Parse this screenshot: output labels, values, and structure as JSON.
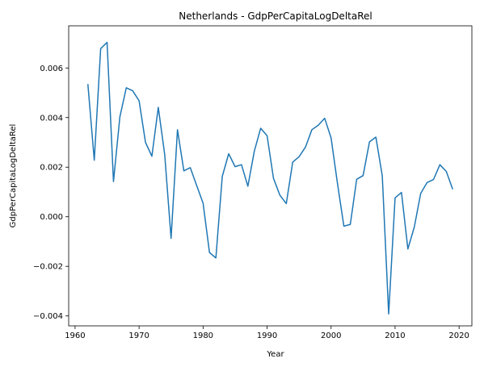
{
  "chart_data": {
    "type": "line",
    "title": "Netherlands - GdpPerCapitaLogDeltaRel",
    "xlabel": "Year",
    "ylabel": "GdpPerCapitaLogDeltaRel",
    "xlim": [
      1959,
      2022
    ],
    "ylim": [
      -0.0044,
      0.0077
    ],
    "x_ticks": [
      1960,
      1970,
      1980,
      1990,
      2000,
      2010,
      2020
    ],
    "x_tick_labels": [
      "1960",
      "1970",
      "1980",
      "1990",
      "2000",
      "2010",
      "2020"
    ],
    "y_ticks": [
      -0.004,
      -0.002,
      0.0,
      0.002,
      0.004,
      0.006
    ],
    "y_tick_labels": [
      "−0.004",
      "−0.002",
      "0.000",
      "0.002",
      "0.004",
      "0.006"
    ],
    "grid": false,
    "line_color": "#1f77b4",
    "x": [
      1962,
      1963,
      1964,
      1965,
      1966,
      1967,
      1968,
      1969,
      1970,
      1971,
      1972,
      1973,
      1974,
      1975,
      1976,
      1977,
      1978,
      1979,
      1980,
      1981,
      1982,
      1983,
      1984,
      1985,
      1986,
      1987,
      1988,
      1989,
      1990,
      1991,
      1992,
      1993,
      1994,
      1995,
      1996,
      1997,
      1998,
      1999,
      2000,
      2001,
      2002,
      2003,
      2004,
      2005,
      2006,
      2007,
      2008,
      2009,
      2010,
      2011,
      2012,
      2013,
      2014,
      2015,
      2016,
      2017,
      2018,
      2019
    ],
    "y": [
      0.00535,
      0.00228,
      0.00678,
      0.00703,
      0.00142,
      0.00403,
      0.0052,
      0.00508,
      0.00468,
      0.003,
      0.00244,
      0.00441,
      0.00252,
      -0.00087,
      0.00351,
      0.00185,
      0.00198,
      0.00126,
      0.00055,
      -0.00144,
      -0.00166,
      0.00163,
      0.00254,
      0.00202,
      0.0021,
      0.00123,
      0.00264,
      0.00357,
      0.00327,
      0.00155,
      0.00087,
      0.00053,
      0.0022,
      0.00242,
      0.00281,
      0.00351,
      0.00369,
      0.00397,
      0.00318,
      0.00134,
      -0.00038,
      -0.00031,
      0.00151,
      0.00166,
      0.00302,
      0.00321,
      0.00165,
      -0.00392,
      0.00076,
      0.00098,
      -0.0013,
      -0.00042,
      0.00094,
      0.00138,
      0.0015,
      0.0021,
      0.00183,
      0.00111
    ]
  }
}
